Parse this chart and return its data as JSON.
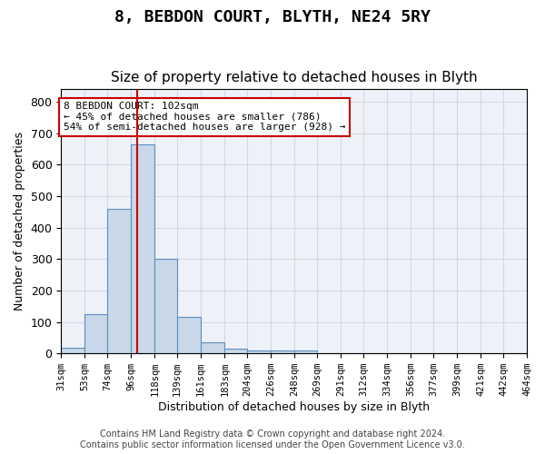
{
  "title": "8, BEBDON COURT, BLYTH, NE24 5RY",
  "subtitle": "Size of property relative to detached houses in Blyth",
  "xlabel": "Distribution of detached houses by size in Blyth",
  "ylabel": "Number of detached properties",
  "bin_edges": [
    31,
    53,
    74,
    96,
    118,
    139,
    161,
    183,
    204,
    226,
    248,
    269,
    291,
    312,
    334,
    356,
    377,
    399,
    421,
    442,
    464
  ],
  "bin_labels": [
    "31sqm",
    "53sqm",
    "74sqm",
    "96sqm",
    "118sqm",
    "139sqm",
    "161sqm",
    "183sqm",
    "204sqm",
    "226sqm",
    "248sqm",
    "269sqm",
    "291sqm",
    "312sqm",
    "334sqm",
    "356sqm",
    "377sqm",
    "399sqm",
    "421sqm",
    "442sqm",
    "464sqm"
  ],
  "bar_heights": [
    18,
    125,
    460,
    665,
    300,
    115,
    35,
    15,
    10,
    8,
    10,
    0,
    0,
    0,
    0,
    0,
    0,
    0,
    0,
    0
  ],
  "bar_color": "#c8d8e8",
  "bar_edge_color": "#5a8fc0",
  "property_size": 102,
  "vline_color": "#cc0000",
  "annotation_text": "8 BEBDON COURT: 102sqm\n← 45% of detached houses are smaller (786)\n54% of semi-detached houses are larger (928) →",
  "annotation_box_color": "#ffffff",
  "annotation_box_edge_color": "#cc0000",
  "ylim": [
    0,
    840
  ],
  "yticks": [
    0,
    100,
    200,
    300,
    400,
    500,
    600,
    700,
    800
  ],
  "grid_color": "#d0d8e8",
  "background_color": "#eef2f8",
  "title_fontsize": 13,
  "subtitle_fontsize": 11,
  "footer_text": "Contains HM Land Registry data © Crown copyright and database right 2024.\nContains public sector information licensed under the Open Government Licence v3.0.",
  "footer_fontsize": 7
}
